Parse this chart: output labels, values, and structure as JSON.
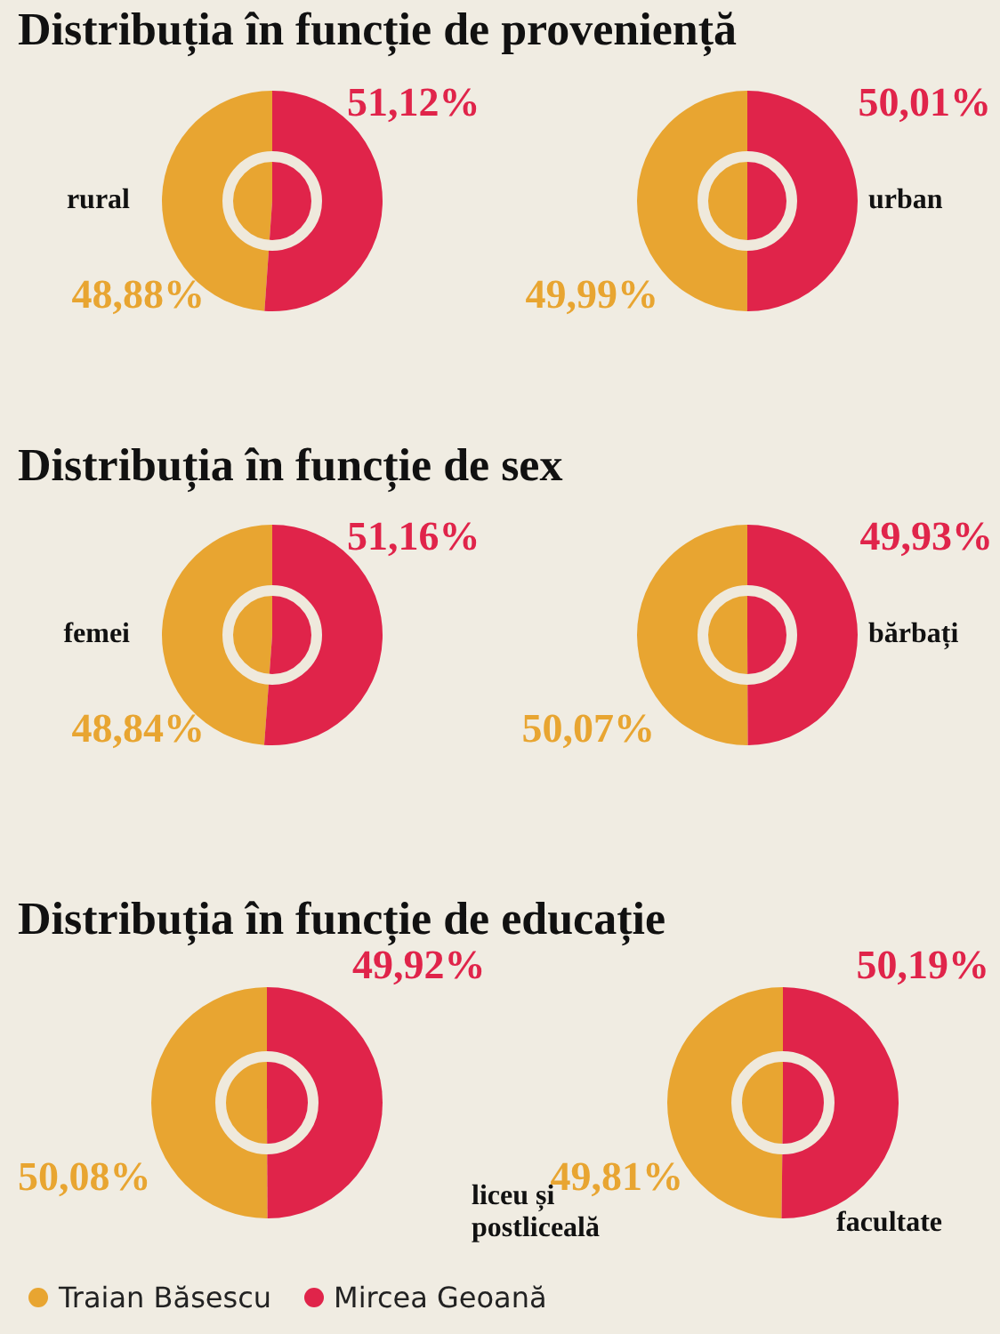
{
  "chart_data": [
    {
      "type": "pie",
      "title": "Distribuția în funcție de proveniență",
      "categories": [
        null,
        null
      ],
      "values": [
        48.88,
        51.12
      ],
      "colors": [
        "#e8a531",
        "#e0244a"
      ],
      "value_labels": [
        "48,88%",
        "51,12%"
      ],
      "annotations": [
        "rural"
      ],
      "legend": false
    },
    {
      "type": "pie",
      "categories": [
        null,
        null
      ],
      "values": [
        49.99,
        50.01
      ],
      "colors": [
        "#e8a531",
        "#e0244a"
      ],
      "value_labels": [
        "49,99%",
        "50,01%"
      ],
      "annotations": [
        "urban"
      ],
      "legend": false
    },
    {
      "type": "pie",
      "title": "Distribuția în funcție de sex",
      "categories": [
        null,
        null
      ],
      "values": [
        48.84,
        51.16
      ],
      "colors": [
        "#e8a531",
        "#e0244a"
      ],
      "value_labels": [
        "48,84%",
        "51,16%"
      ],
      "annotations": [
        "femei"
      ],
      "legend": false
    },
    {
      "type": "pie",
      "categories": [
        null,
        null
      ],
      "values": [
        50.07,
        49.93
      ],
      "colors": [
        "#e8a531",
        "#e0244a"
      ],
      "value_labels": [
        "50,07%",
        "49,93%"
      ],
      "annotations": [
        "bărbați"
      ],
      "legend": false
    },
    {
      "type": "pie",
      "title": "Distribuția în funcție de educație",
      "categories": [
        "Traian Băsescu",
        "Mircea Geoană"
      ],
      "values": [
        50.08,
        49.92
      ],
      "colors": [
        "#e8a531",
        "#e0244a"
      ],
      "value_labels": [
        "50,08%",
        "49,92%"
      ],
      "annotations": [
        "liceu și postliceală"
      ],
      "legend": "bottom"
    },
    {
      "type": "pie",
      "categories": [
        null,
        null
      ],
      "values": [
        49.81,
        50.19
      ],
      "colors": [
        "#e8a531",
        "#e0244a"
      ],
      "value_labels": [
        "49,81%",
        "50,19%"
      ],
      "annotations": [
        "facultate"
      ],
      "legend": false
    }
  ]
}
